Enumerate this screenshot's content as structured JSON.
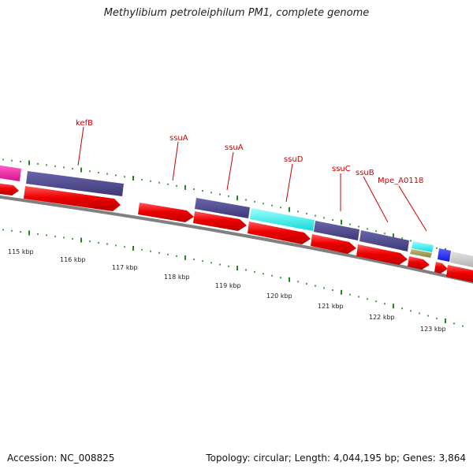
{
  "title": "Methylibium petroleiphilum PM1, complete genome",
  "footer": {
    "accession": "Accession: NC_008825",
    "stats": "Topology: circular; Length: 4,044,195 bp; Genes: 3,864"
  },
  "gene_labels": [
    "kefB",
    "ssuA",
    "ssuA",
    "ssuD",
    "ssuC",
    "ssuB",
    "Mpe_A0118"
  ],
  "scale_labels": [
    "115 kbp",
    "116 kbp",
    "117 kbp",
    "118 kbp",
    "119 kbp",
    "120 kbp",
    "121 kbp",
    "122 kbp",
    "123 kbp"
  ],
  "colors": {
    "cds_arrow": "#ee0000",
    "feature_purple": "#4a4688",
    "feature_cyan": "#22ecec",
    "feature_magenta": "#ee1ca0",
    "feature_blue": "#1a22ee",
    "feature_olive": "#a09a4e",
    "feature_grey": "#c4c4c4",
    "backbone": "#808080",
    "tick_green": "#1a8a1a",
    "label_red": "#cc0000"
  }
}
